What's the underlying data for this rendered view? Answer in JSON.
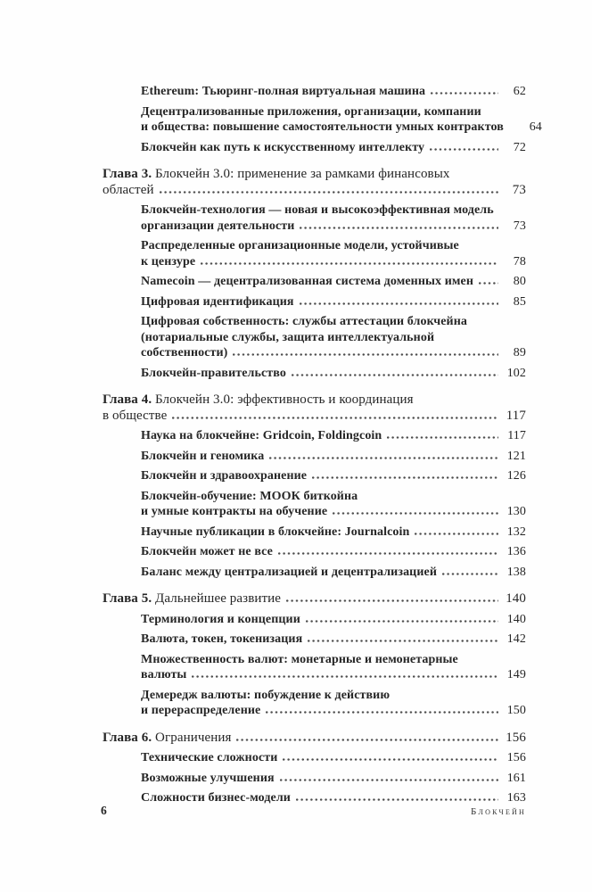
{
  "colors": {
    "background": "#fefefe",
    "text": "#262626",
    "leader_dots": "#4d4d4d"
  },
  "footer": {
    "page_number": "6",
    "running_title": "Блокчейн"
  },
  "toc": {
    "entries": [
      {
        "type": "sub",
        "lines": [
          "Ethereum: Тьюринг-полная виртуальная машина"
        ],
        "page": "62",
        "dots": true
      },
      {
        "type": "sub",
        "lines": [
          "Децентрализованные приложения, организации, компании",
          "и общества: повышение самостоятельности умных контрактов"
        ],
        "page": "64",
        "dots": false
      },
      {
        "type": "sub",
        "lines": [
          "Блокчейн как путь к искусственному интеллекту"
        ],
        "page": "72",
        "dots": true
      },
      {
        "type": "chapter",
        "label": "Глава 3. ",
        "lines": [
          "Блокчейн 3.0: применение за рамками финансовых",
          "областей"
        ],
        "page": "73",
        "dots": true
      },
      {
        "type": "sub",
        "lines": [
          "Блокчейн-технология — новая и высокоэффективная модель",
          "организации деятельности"
        ],
        "page": "73",
        "dots": true
      },
      {
        "type": "sub",
        "lines": [
          "Распределенные организационные модели, устойчивые",
          "к цензуре"
        ],
        "page": "78",
        "dots": true
      },
      {
        "type": "sub",
        "lines": [
          "Namecoin — децентрализованная система доменных имен"
        ],
        "page": "80",
        "dots": true
      },
      {
        "type": "sub",
        "lines": [
          "Цифровая идентификация"
        ],
        "page": "85",
        "dots": true
      },
      {
        "type": "sub",
        "lines": [
          "Цифровая собственность: службы аттестации блокчейна",
          "(нотариальные службы, защита интеллектуальной",
          "собственности)"
        ],
        "page": "89",
        "dots": true
      },
      {
        "type": "sub",
        "lines": [
          "Блокчейн-правительство"
        ],
        "page": "102",
        "dots": true
      },
      {
        "type": "chapter",
        "label": "Глава 4. ",
        "lines": [
          "Блокчейн 3.0: эффективность и координация",
          "в обществе"
        ],
        "page": "117",
        "dots": true
      },
      {
        "type": "sub",
        "lines": [
          "Наука на блокчейне: Gridcoin, Foldingcoin"
        ],
        "page": "117",
        "dots": true
      },
      {
        "type": "sub",
        "lines": [
          "Блокчейн и геномика"
        ],
        "page": "121",
        "dots": true
      },
      {
        "type": "sub",
        "lines": [
          "Блокчейн и здравоохранение"
        ],
        "page": "126",
        "dots": true
      },
      {
        "type": "sub",
        "lines": [
          "Блокчейн-обучение: МООК биткойна",
          "и умные контракты на обучение"
        ],
        "page": "130",
        "dots": true
      },
      {
        "type": "sub",
        "lines": [
          "Научные публикации в блокчейне: Journalcoin"
        ],
        "page": "132",
        "dots": true
      },
      {
        "type": "sub",
        "lines": [
          "Блокчейн может не все"
        ],
        "page": "136",
        "dots": true
      },
      {
        "type": "sub",
        "lines": [
          "Баланс между централизацией и децентрализацией"
        ],
        "page": "138",
        "dots": true
      },
      {
        "type": "chapter",
        "label": "Глава 5. ",
        "lines": [
          "Дальнейшее развитие"
        ],
        "page": "140",
        "dots": true
      },
      {
        "type": "sub",
        "lines": [
          "Терминология и концепции"
        ],
        "page": "140",
        "dots": true
      },
      {
        "type": "sub",
        "lines": [
          "Валюта, токен, токенизация"
        ],
        "page": "142",
        "dots": true
      },
      {
        "type": "sub",
        "lines": [
          "Множественность валют: монетарные и немонетарные",
          "валюты"
        ],
        "page": "149",
        "dots": true
      },
      {
        "type": "sub",
        "lines": [
          "Демередж валюты: побуждение к действию",
          "и перераспределение"
        ],
        "page": "150",
        "dots": true
      },
      {
        "type": "chapter",
        "label": "Глава 6. ",
        "lines": [
          "Ограничения"
        ],
        "page": "156",
        "dots": true
      },
      {
        "type": "sub",
        "lines": [
          "Технические сложности"
        ],
        "page": "156",
        "dots": true
      },
      {
        "type": "sub",
        "lines": [
          "Возможные улучшения"
        ],
        "page": "161",
        "dots": true
      },
      {
        "type": "sub",
        "lines": [
          "Сложности бизнес-модели"
        ],
        "page": "163",
        "dots": true
      }
    ]
  }
}
